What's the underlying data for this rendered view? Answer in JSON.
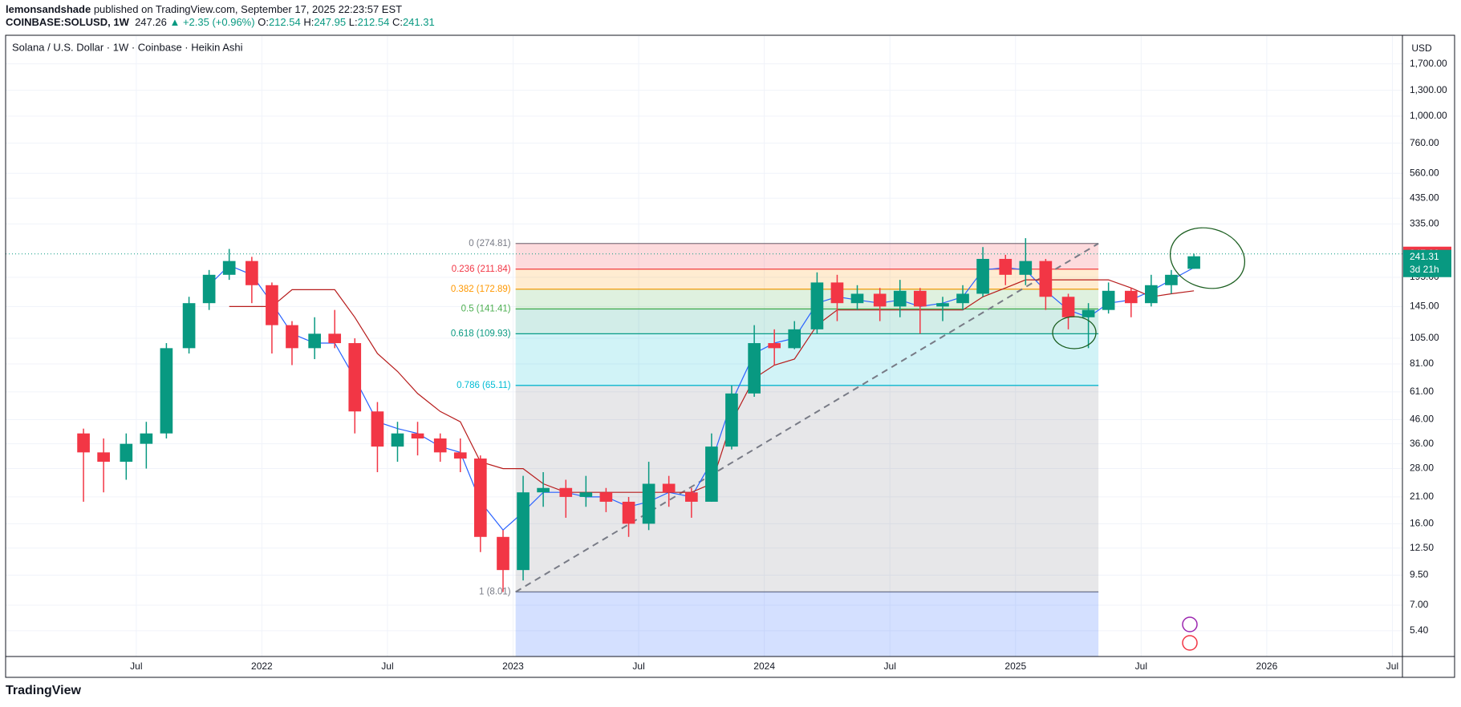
{
  "header": {
    "author": "lemonsandshade",
    "published": "published on TradingView.com, September 17, 2025 22:23:57 EST",
    "symbol": "COINBASE:SOLUSD, 1W",
    "price": "247.26",
    "change": "▲ +2.35 (+0.96%)",
    "ohlc": [
      {
        "label": "O:",
        "value": "212.54"
      },
      {
        "label": "H:",
        "value": "247.95"
      },
      {
        "label": "L:",
        "value": "212.54"
      },
      {
        "label": "C:",
        "value": "241.31"
      }
    ]
  },
  "footer": {
    "brand": "TradingView"
  },
  "chart_data": {
    "type": "candlestick",
    "title": "Solana / U.S. Dollar · 1W · Coinbase · Heikin Ashi",
    "currency": "USD",
    "log_scale": true,
    "grid": true,
    "up_color": "#089981",
    "down_color": "#f23645",
    "x": [
      2021.29,
      2021.37,
      2021.46,
      2021.54,
      2021.62,
      2021.71,
      2021.79,
      2021.87,
      2021.96,
      2022.04,
      2022.12,
      2022.21,
      2022.29,
      2022.37,
      2022.46,
      2022.54,
      2022.62,
      2022.71,
      2022.79,
      2022.87,
      2022.96,
      2023.04,
      2023.12,
      2023.21,
      2023.29,
      2023.37,
      2023.46,
      2023.54,
      2023.62,
      2023.71,
      2023.79,
      2023.87,
      2023.96,
      2024.04,
      2024.12,
      2024.21,
      2024.29,
      2024.37,
      2024.46,
      2024.54,
      2024.62,
      2024.71,
      2024.79,
      2024.87,
      2024.96,
      2025.04,
      2025.12,
      2025.21,
      2025.29,
      2025.37,
      2025.46,
      2025.54,
      2025.62,
      2025.71
    ],
    "open": [
      40,
      33,
      30,
      36,
      40,
      95,
      150,
      200,
      230,
      180,
      120,
      95,
      110,
      100,
      50,
      35,
      40,
      38,
      33,
      31,
      14,
      10,
      22,
      23,
      21,
      22,
      20,
      16,
      24,
      22,
      20,
      35,
      60,
      100,
      95,
      115,
      185,
      150,
      165,
      145,
      170,
      145,
      150,
      165,
      235,
      200,
      230,
      160,
      130,
      140,
      170,
      150,
      180,
      212.54
    ],
    "high": [
      42,
      38,
      40,
      45,
      100,
      160,
      210,
      260,
      240,
      185,
      125,
      130,
      140,
      105,
      55,
      45,
      45,
      40,
      38,
      32,
      15,
      26,
      27,
      25,
      26,
      23,
      21,
      30,
      26,
      23,
      40,
      65,
      120,
      115,
      125,
      205,
      200,
      180,
      175,
      190,
      175,
      160,
      180,
      265,
      245,
      290,
      235,
      165,
      150,
      185,
      175,
      200,
      210,
      247.95
    ],
    "low": [
      20,
      22,
      25,
      28,
      38,
      90,
      140,
      190,
      150,
      90,
      80,
      85,
      95,
      40,
      27,
      30,
      32,
      30,
      27,
      12,
      8,
      9,
      19,
      17,
      19,
      18,
      14,
      15,
      19,
      17,
      20,
      34,
      58,
      80,
      94,
      110,
      125,
      140,
      125,
      130,
      110,
      125,
      140,
      160,
      180,
      180,
      140,
      115,
      95,
      135,
      130,
      145,
      165,
      212.54
    ],
    "close": [
      33,
      30,
      36,
      40,
      95,
      150,
      200,
      230,
      180,
      120,
      95,
      110,
      100,
      50,
      35,
      40,
      38,
      33,
      31,
      14,
      10,
      22,
      23,
      21,
      22,
      20,
      16,
      24,
      22,
      20,
      35,
      60,
      100,
      95,
      115,
      185,
      150,
      165,
      145,
      170,
      145,
      150,
      165,
      235,
      200,
      230,
      160,
      130,
      140,
      170,
      150,
      180,
      200,
      241.31
    ],
    "lines": [
      {
        "color": "#2962ff",
        "values": [
          null,
          null,
          null,
          null,
          null,
          null,
          180,
          220,
          200,
          150,
          110,
          100,
          100,
          70,
          45,
          42,
          40,
          35,
          33,
          20,
          15,
          18,
          22,
          22,
          21,
          21,
          19,
          20,
          22,
          21,
          30,
          55,
          90,
          100,
          105,
          150,
          160,
          155,
          150,
          155,
          145,
          150,
          160,
          210,
          215,
          210,
          170,
          140,
          130,
          150,
          155,
          170,
          190,
          215
        ]
      },
      {
        "color": "#b71c1c",
        "values": [
          null,
          null,
          null,
          null,
          null,
          null,
          null,
          145,
          145,
          145,
          172,
          172,
          172,
          130,
          90,
          75,
          60,
          50,
          45,
          30,
          28,
          28,
          24,
          22,
          22,
          22,
          22,
          22,
          22,
          22,
          24,
          45,
          70,
          80,
          85,
          120,
          140,
          140,
          140,
          140,
          140,
          140,
          140,
          160,
          175,
          190,
          190,
          190,
          190,
          190,
          175,
          160,
          165,
          170
        ]
      }
    ],
    "fib_range_x": [
      2023.01,
      2025.33
    ],
    "fib_below_color": "#2962ff",
    "fib_levels": [
      {
        "label": "0 (274.81)",
        "value": 274.81,
        "color": "#787b86"
      },
      {
        "label": "0.236 (211.84)",
        "value": 211.84,
        "color": "#f23645"
      },
      {
        "label": "0.382 (172.89)",
        "value": 172.89,
        "color": "#ff9800"
      },
      {
        "label": "0.5 (141.41)",
        "value": 141.41,
        "color": "#4caf50"
      },
      {
        "label": "0.618 (109.93)",
        "value": 109.93,
        "color": "#089981"
      },
      {
        "label": "0.786 (65.11)",
        "value": 65.11,
        "color": "#00bcd4"
      },
      {
        "label": "1 (8.01)",
        "value": 8.01,
        "color": "#787b86"
      }
    ],
    "last_price": 247.26,
    "close_price": 241.31,
    "countdown": "3d 21h",
    "xlim": [
      2020.98,
      2026.54
    ],
    "ylim": [
      4.16,
      2254
    ],
    "xticks": [
      {
        "value": 2021.5,
        "label": "Jul"
      },
      2022,
      {
        "value": 2022.5,
        "label": "Jul"
      },
      2023,
      {
        "value": 2023.5,
        "label": "Jul"
      },
      2024,
      {
        "value": 2024.5,
        "label": "Jul"
      },
      2025,
      {
        "value": 2025.5,
        "label": "Jul"
      },
      2026,
      {
        "value": 2026.5,
        "label": "Jul"
      }
    ],
    "yticks": [
      {
        "value": 5.4,
        "label": "5.40"
      },
      {
        "value": 7,
        "label": "7.00"
      },
      {
        "value": 9.5,
        "label": "9.50"
      },
      {
        "value": 12.5,
        "label": "12.50"
      },
      {
        "value": 16,
        "label": "16.00"
      },
      {
        "value": 21,
        "label": "21.00"
      },
      {
        "value": 28,
        "label": "28.00"
      },
      {
        "value": 36,
        "label": "36.00"
      },
      {
        "value": 46,
        "label": "46.00"
      },
      {
        "value": 61,
        "label": "61.00"
      },
      {
        "value": 81,
        "label": "81.00"
      },
      {
        "value": 105,
        "label": "105.00"
      },
      {
        "value": 145,
        "label": "145.00"
      },
      {
        "value": 195,
        "label": "195.00"
      },
      {
        "value": 335,
        "label": "335.00"
      },
      {
        "value": 435,
        "label": "435.00"
      },
      {
        "value": 560,
        "label": "560.00"
      },
      {
        "value": 760,
        "label": "760.00"
      },
      {
        "value": 1000,
        "label": "1,000.00"
      },
      {
        "value": 1300,
        "label": "1,300.00"
      },
      {
        "value": 1700,
        "label": "1,700.00"
      }
    ]
  }
}
